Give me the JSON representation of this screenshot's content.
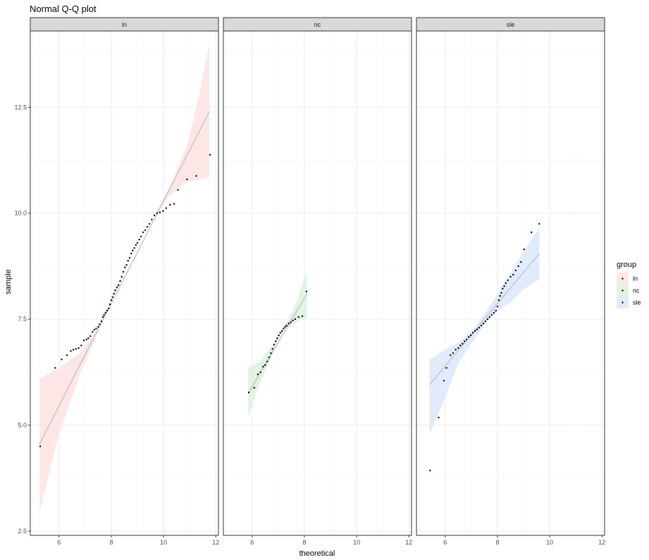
{
  "chart_data": {
    "type": "scatter",
    "subtype": "faceted-qq",
    "title": "Normal Q-Q plot",
    "xlabel": "theoretical",
    "ylabel": "sample",
    "xlim": [
      4.9,
      12.1
    ],
    "ylim": [
      2.4,
      14.3
    ],
    "x_ticks": [
      6,
      8,
      10,
      12
    ],
    "y_ticks": [
      2.5,
      5.0,
      7.5,
      10.0,
      12.5
    ],
    "y_tick_labels": [
      "2.5",
      "5.0",
      "7.5",
      "10.0",
      "12.5"
    ],
    "grid": true,
    "legend": {
      "title": "group",
      "placement": "right"
    },
    "colors": {
      "panel_border": "#333333",
      "grid_major": "#ebebeb",
      "grid_minor": "#f5f5f5",
      "strip_fill": "#d9d9d9",
      "line": "#bdbdbd",
      "point": "#000000"
    },
    "panels": [
      {
        "name": "ln",
        "band_color": "#fde7e6",
        "line": [
          [
            5.25,
            4.55
          ],
          [
            11.75,
            12.4
          ]
        ],
        "band_upper": [
          [
            5.25,
            6.1
          ],
          [
            6.0,
            6.35
          ],
          [
            6.8,
            6.7
          ],
          [
            7.5,
            7.3
          ],
          [
            8.2,
            8.3
          ],
          [
            8.8,
            9.0
          ],
          [
            9.5,
            9.8
          ],
          [
            10.2,
            10.6
          ],
          [
            10.9,
            11.6
          ],
          [
            11.4,
            12.9
          ],
          [
            11.75,
            14.0
          ]
        ],
        "band_lower": [
          [
            11.75,
            10.85
          ],
          [
            11.4,
            10.8
          ],
          [
            10.9,
            10.75
          ],
          [
            10.2,
            10.4
          ],
          [
            9.5,
            9.8
          ],
          [
            8.8,
            9.0
          ],
          [
            8.2,
            8.2
          ],
          [
            7.5,
            7.2
          ],
          [
            6.8,
            6.2
          ],
          [
            6.0,
            4.8
          ],
          [
            5.25,
            2.95
          ]
        ],
        "points": [
          [
            5.28,
            4.5
          ],
          [
            5.85,
            6.35
          ],
          [
            6.1,
            6.55
          ],
          [
            6.3,
            6.65
          ],
          [
            6.45,
            6.75
          ],
          [
            6.55,
            6.78
          ],
          [
            6.65,
            6.8
          ],
          [
            6.75,
            6.82
          ],
          [
            6.85,
            6.88
          ],
          [
            6.95,
            7.0
          ],
          [
            7.05,
            7.02
          ],
          [
            7.12,
            7.05
          ],
          [
            7.2,
            7.1
          ],
          [
            7.28,
            7.2
          ],
          [
            7.35,
            7.25
          ],
          [
            7.42,
            7.28
          ],
          [
            7.5,
            7.32
          ],
          [
            7.55,
            7.38
          ],
          [
            7.62,
            7.45
          ],
          [
            7.68,
            7.55
          ],
          [
            7.72,
            7.6
          ],
          [
            7.78,
            7.65
          ],
          [
            7.84,
            7.7
          ],
          [
            7.9,
            7.75
          ],
          [
            7.95,
            7.85
          ],
          [
            8.0,
            7.95
          ],
          [
            8.05,
            8.02
          ],
          [
            8.1,
            8.1
          ],
          [
            8.15,
            8.18
          ],
          [
            8.22,
            8.25
          ],
          [
            8.28,
            8.3
          ],
          [
            8.34,
            8.4
          ],
          [
            8.4,
            8.5
          ],
          [
            8.46,
            8.62
          ],
          [
            8.52,
            8.72
          ],
          [
            8.58,
            8.78
          ],
          [
            8.64,
            8.88
          ],
          [
            8.7,
            8.95
          ],
          [
            8.76,
            9.05
          ],
          [
            8.82,
            9.12
          ],
          [
            8.88,
            9.18
          ],
          [
            8.94,
            9.25
          ],
          [
            9.0,
            9.3
          ],
          [
            9.07,
            9.38
          ],
          [
            9.14,
            9.45
          ],
          [
            9.22,
            9.55
          ],
          [
            9.3,
            9.6
          ],
          [
            9.38,
            9.68
          ],
          [
            9.46,
            9.75
          ],
          [
            9.55,
            9.85
          ],
          [
            9.65,
            9.95
          ],
          [
            9.75,
            10.0
          ],
          [
            9.86,
            10.02
          ],
          [
            9.98,
            10.05
          ],
          [
            10.1,
            10.12
          ],
          [
            10.25,
            10.2
          ],
          [
            10.4,
            10.22
          ],
          [
            10.55,
            10.55
          ],
          [
            10.9,
            10.8
          ],
          [
            11.25,
            10.88
          ],
          [
            11.78,
            11.38
          ]
        ]
      },
      {
        "name": "nc",
        "band_color": "#e1f3e2",
        "line": [
          [
            5.85,
            5.75
          ],
          [
            8.1,
            8.1
          ]
        ],
        "band_upper": [
          [
            5.85,
            6.35
          ],
          [
            6.3,
            6.5
          ],
          [
            6.8,
            6.9
          ],
          [
            7.2,
            7.3
          ],
          [
            7.6,
            7.75
          ],
          [
            8.1,
            8.65
          ]
        ],
        "band_lower": [
          [
            8.1,
            7.55
          ],
          [
            7.6,
            7.4
          ],
          [
            7.2,
            7.2
          ],
          [
            6.8,
            6.7
          ],
          [
            6.3,
            6.0
          ],
          [
            5.85,
            5.2
          ]
        ],
        "points": [
          [
            5.87,
            5.77
          ],
          [
            6.08,
            5.88
          ],
          [
            6.22,
            6.2
          ],
          [
            6.32,
            6.25
          ],
          [
            6.42,
            6.38
          ],
          [
            6.5,
            6.42
          ],
          [
            6.58,
            6.5
          ],
          [
            6.65,
            6.6
          ],
          [
            6.72,
            6.7
          ],
          [
            6.78,
            6.8
          ],
          [
            6.84,
            6.9
          ],
          [
            6.9,
            6.98
          ],
          [
            6.96,
            7.05
          ],
          [
            7.02,
            7.12
          ],
          [
            7.08,
            7.18
          ],
          [
            7.14,
            7.22
          ],
          [
            7.2,
            7.28
          ],
          [
            7.26,
            7.32
          ],
          [
            7.32,
            7.35
          ],
          [
            7.4,
            7.4
          ],
          [
            7.48,
            7.43
          ],
          [
            7.56,
            7.47
          ],
          [
            7.65,
            7.5
          ],
          [
            7.78,
            7.55
          ],
          [
            7.92,
            7.57
          ],
          [
            8.08,
            8.15
          ]
        ]
      },
      {
        "name": "sle",
        "band_color": "#e2ebfb",
        "line": [
          [
            5.4,
            5.95
          ],
          [
            9.6,
            9.05
          ]
        ],
        "band_upper": [
          [
            5.4,
            6.55
          ],
          [
            5.9,
            6.75
          ],
          [
            6.5,
            6.95
          ],
          [
            7.2,
            7.35
          ],
          [
            7.8,
            7.9
          ],
          [
            8.5,
            8.6
          ],
          [
            9.0,
            9.1
          ],
          [
            9.6,
            9.65
          ]
        ],
        "band_lower": [
          [
            9.6,
            8.45
          ],
          [
            9.0,
            8.2
          ],
          [
            8.5,
            7.9
          ],
          [
            7.8,
            7.6
          ],
          [
            7.2,
            7.1
          ],
          [
            6.5,
            6.45
          ],
          [
            5.9,
            5.5
          ],
          [
            5.4,
            4.8
          ]
        ],
        "points": [
          [
            5.42,
            3.93
          ],
          [
            5.75,
            5.18
          ],
          [
            5.95,
            6.05
          ],
          [
            6.05,
            6.35
          ],
          [
            6.2,
            6.65
          ],
          [
            6.3,
            6.7
          ],
          [
            6.4,
            6.78
          ],
          [
            6.5,
            6.82
          ],
          [
            6.58,
            6.88
          ],
          [
            6.66,
            6.92
          ],
          [
            6.74,
            6.98
          ],
          [
            6.82,
            7.02
          ],
          [
            6.9,
            7.08
          ],
          [
            6.98,
            7.12
          ],
          [
            7.06,
            7.18
          ],
          [
            7.14,
            7.22
          ],
          [
            7.22,
            7.26
          ],
          [
            7.3,
            7.3
          ],
          [
            7.38,
            7.35
          ],
          [
            7.46,
            7.4
          ],
          [
            7.54,
            7.45
          ],
          [
            7.62,
            7.5
          ],
          [
            7.7,
            7.55
          ],
          [
            7.78,
            7.6
          ],
          [
            7.86,
            7.65
          ],
          [
            7.94,
            7.7
          ],
          [
            8.0,
            7.8
          ],
          [
            8.05,
            7.95
          ],
          [
            8.1,
            8.05
          ],
          [
            8.15,
            8.12
          ],
          [
            8.2,
            8.22
          ],
          [
            8.26,
            8.28
          ],
          [
            8.32,
            8.35
          ],
          [
            8.4,
            8.42
          ],
          [
            8.5,
            8.5
          ],
          [
            8.6,
            8.55
          ],
          [
            8.7,
            8.65
          ],
          [
            8.8,
            8.75
          ],
          [
            8.9,
            8.85
          ],
          [
            9.02,
            9.15
          ],
          [
            9.3,
            9.55
          ],
          [
            9.6,
            9.75
          ]
        ]
      }
    ]
  }
}
